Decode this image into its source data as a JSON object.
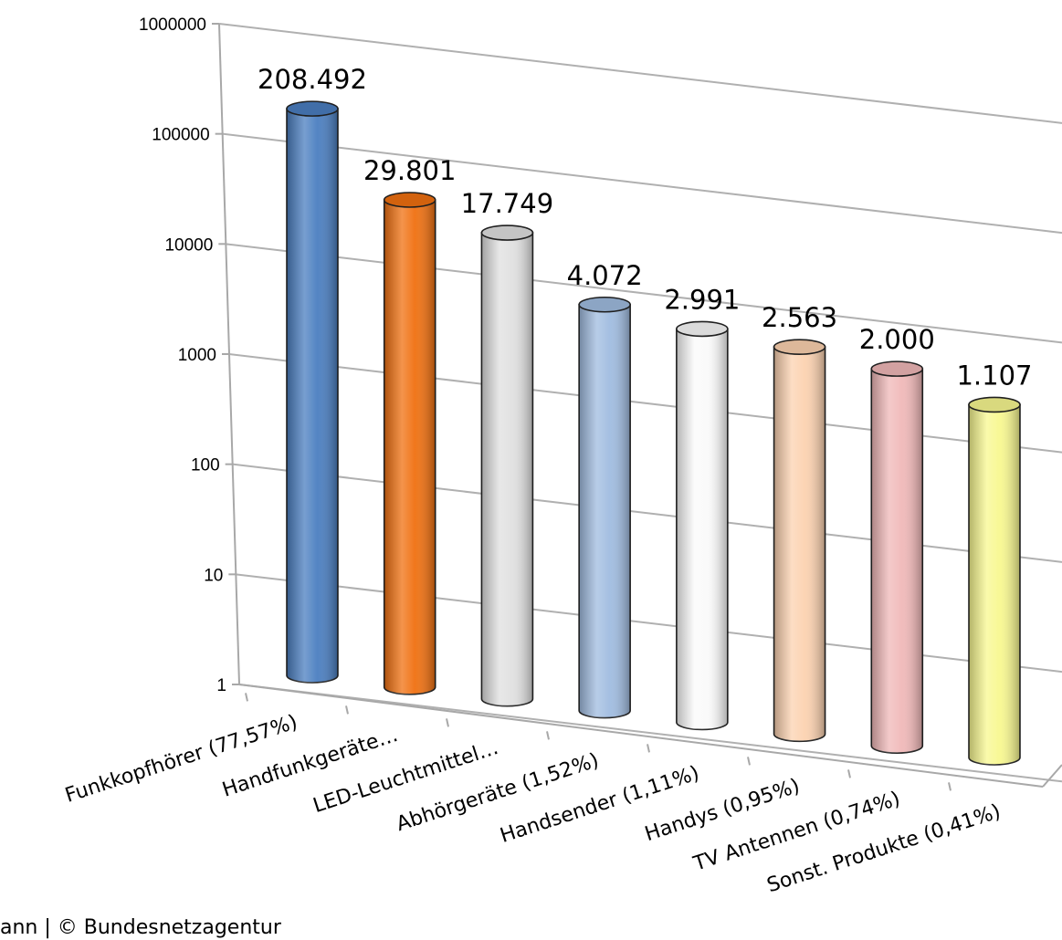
{
  "chart_data": {
    "type": "bar",
    "y_scale": "log",
    "ylim": [
      1,
      1000000
    ],
    "y_ticks": [
      "1000000",
      "100000",
      "10000",
      "1000",
      "100",
      "10",
      "1"
    ],
    "categories": [
      "Funkkopfhörer (77,57%)",
      "Handfunkgeräte…",
      "LED-Leuchtmittel…",
      "Abhörgeräte (1,52%)",
      "Handsender (1,11%)",
      "Handys (0,95%)",
      "TV Antennen (0,74%)",
      "Sonst. Produkte (0,41%)"
    ],
    "values": [
      208492,
      29801,
      17749,
      4072,
      2991,
      2563,
      2000,
      1107
    ],
    "value_labels": [
      "208.492",
      "29.801",
      "17.749",
      "4.072",
      "2.991",
      "2.563",
      "2.000",
      "1.107"
    ],
    "bar_colors": [
      "#4a7ec0",
      "#f07010",
      "#e0e0e0",
      "#a0bce0",
      "#fafafa",
      "#fcd2b0",
      "#f0b8b8",
      "#f8f890"
    ],
    "grid": true,
    "style": "3d-cylinder"
  },
  "footer": "ann | © Bundesnetzagentur"
}
